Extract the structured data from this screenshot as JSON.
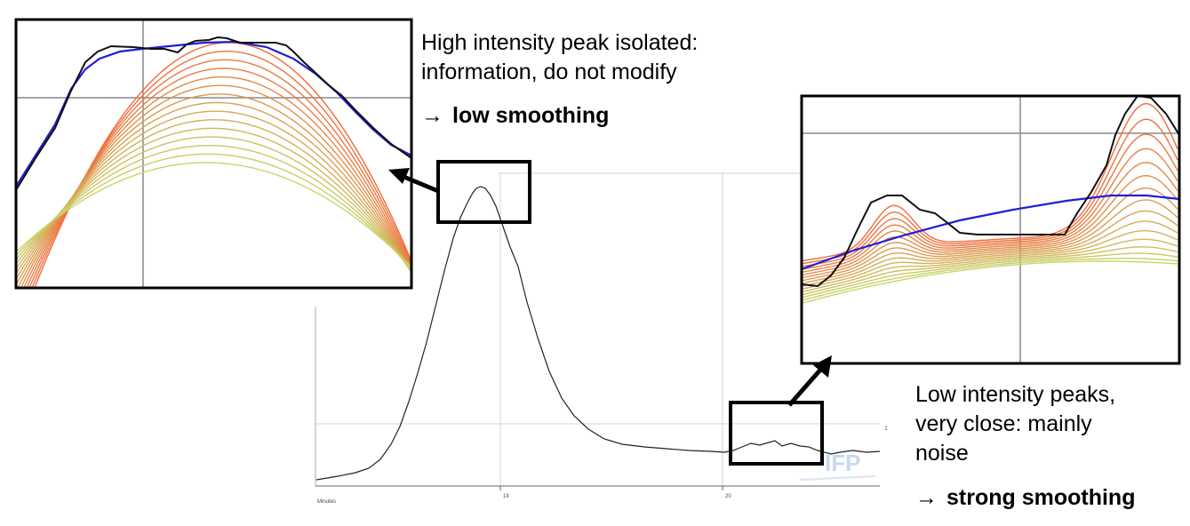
{
  "chromatogram": {
    "x_axis_title": "Minutes",
    "tick_labels": [
      "19",
      "20"
    ],
    "side_mark": "1",
    "watermark": "IFP"
  },
  "callouts": {
    "high": {
      "lines": [
        "High intensity peak isolated:",
        "information, do not modify"
      ],
      "arrow": "→",
      "conclusion": "low smoothing"
    },
    "low": {
      "lines": [
        "Low intensity peaks,",
        "very close: mainly",
        "noise"
      ],
      "arrow": "→",
      "conclusion": "strong smoothing"
    }
  },
  "colors": {
    "raw_signal": "#000000",
    "selected_smoothing": "#1f1fd6",
    "light_smoothing": "#f06a3c",
    "strong_smoothing": "#c6d66a"
  }
}
